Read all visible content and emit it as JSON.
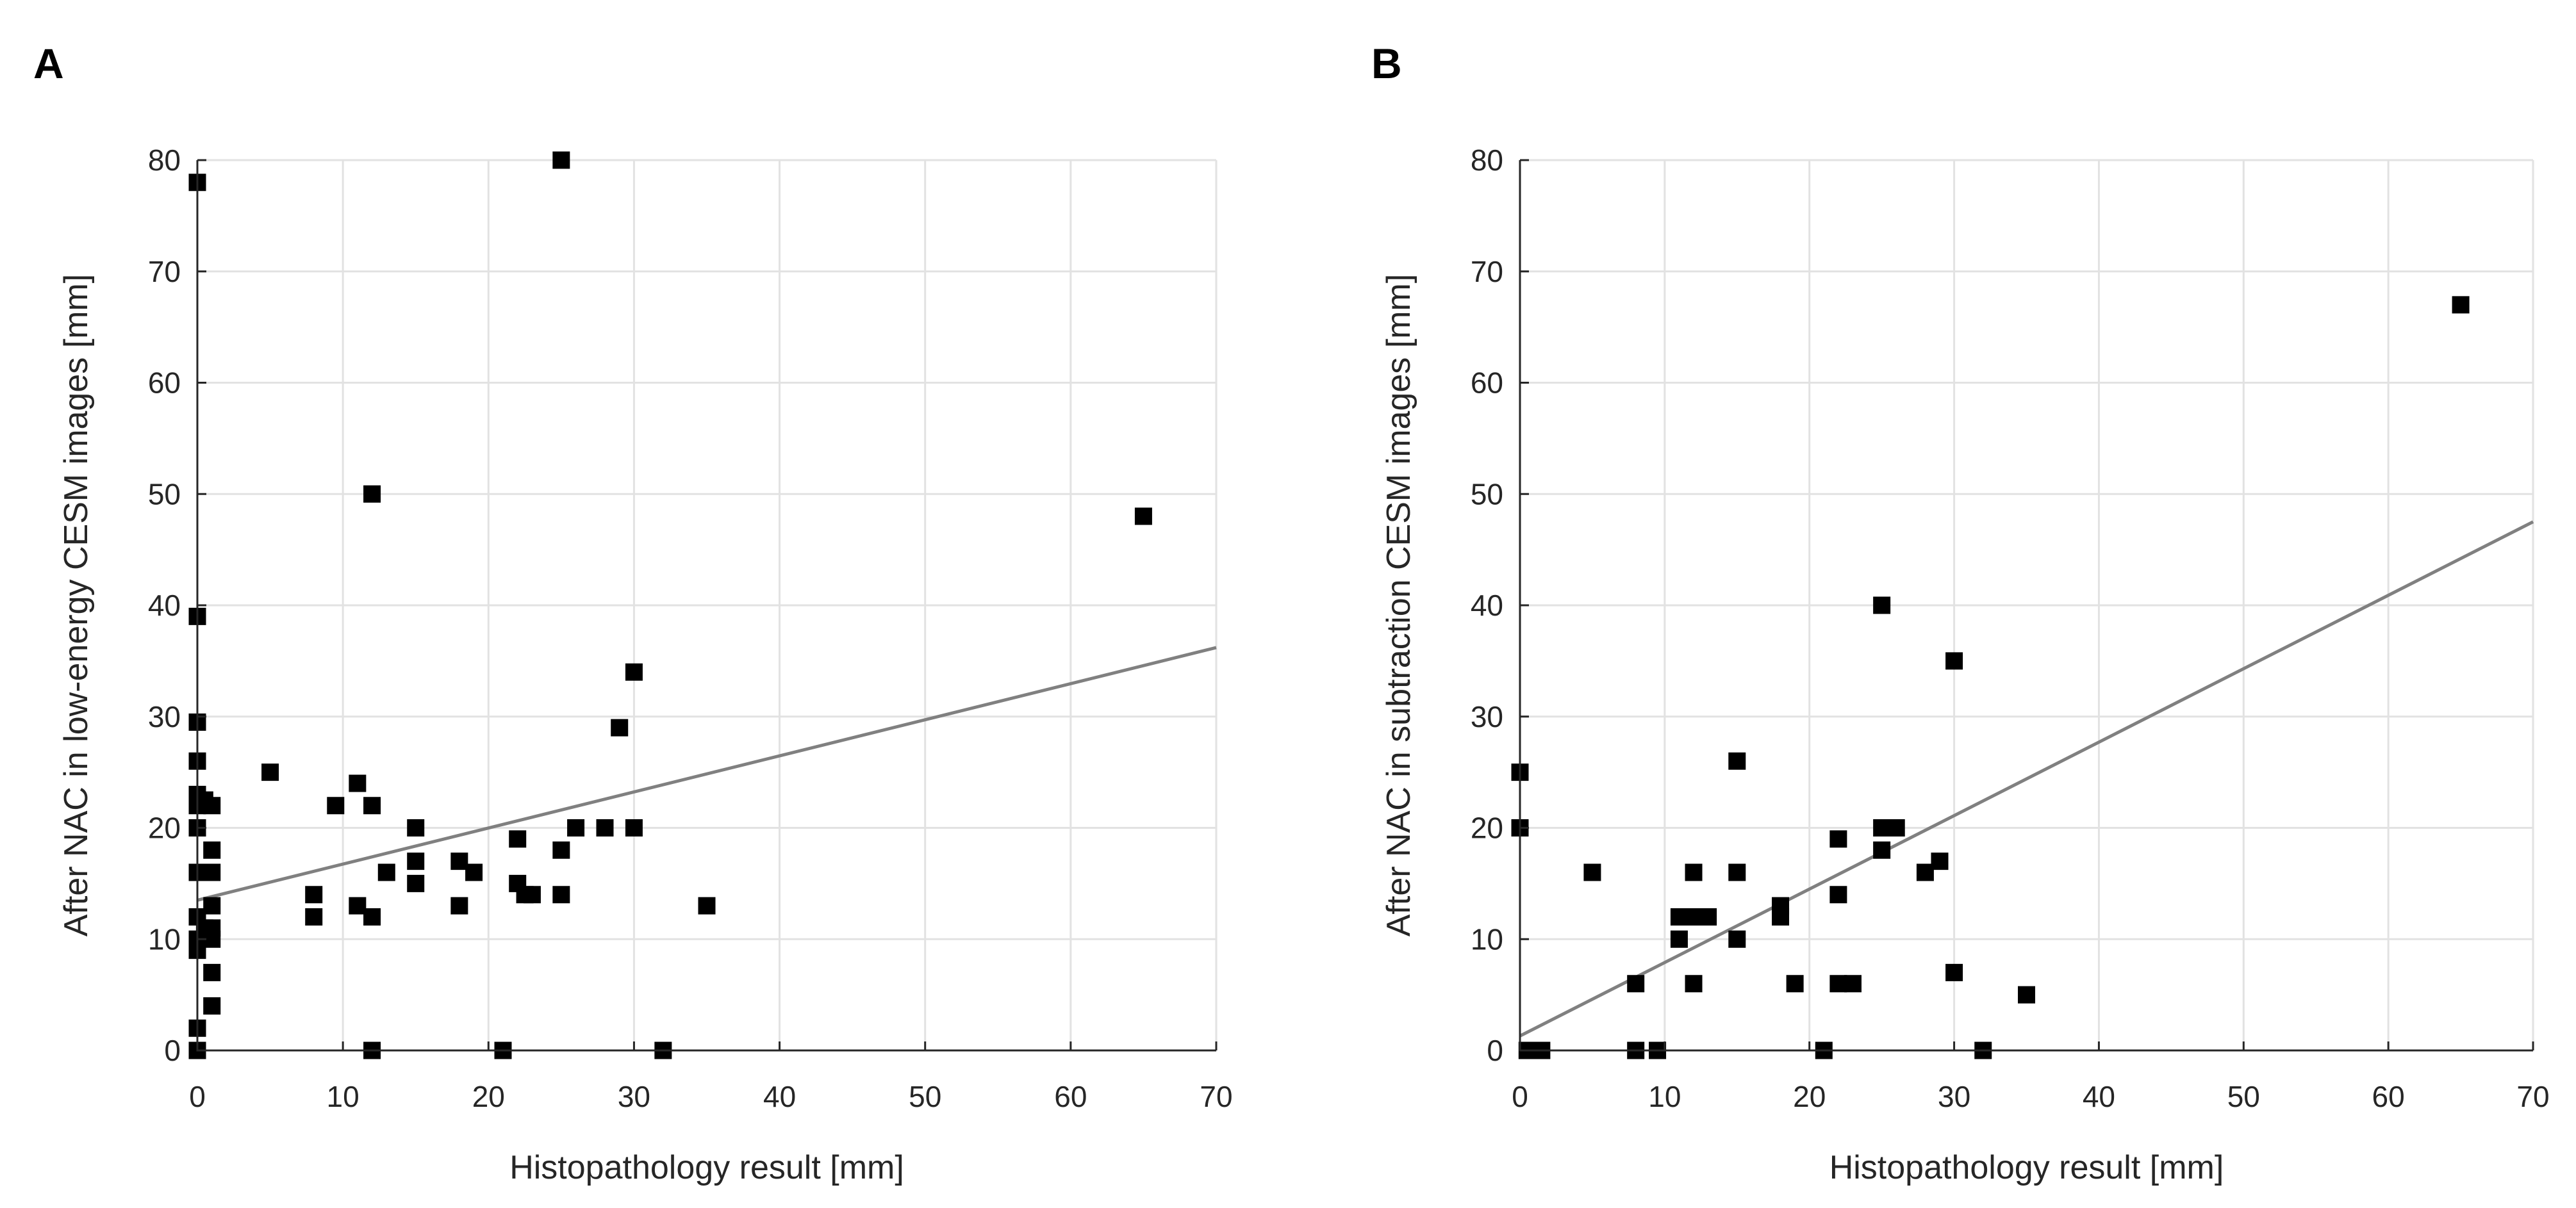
{
  "chart_data": [
    {
      "panel_label": "A",
      "type": "scatter",
      "xlabel": "Histopathology result [mm]",
      "ylabel": "After NAC in low-energy CESM images [mm]",
      "xlim": [
        0,
        70
      ],
      "ylim": [
        0,
        80
      ],
      "xticks": [
        "0",
        "10",
        "20",
        "30",
        "40",
        "50",
        "60",
        "70"
      ],
      "yticks": [
        "0",
        "10",
        "20",
        "30",
        "40",
        "50",
        "60",
        "70",
        "80"
      ],
      "grid": true,
      "series": [
        {
          "name": "measurements",
          "marker": "square",
          "points": [
            [
              0,
              78
            ],
            [
              0,
              39
            ],
            [
              0,
              29.5
            ],
            [
              0,
              26
            ],
            [
              0,
              23
            ],
            [
              0,
              22
            ],
            [
              0,
              20
            ],
            [
              0,
              16
            ],
            [
              0,
              12
            ],
            [
              0,
              10
            ],
            [
              0,
              9
            ],
            [
              0,
              2
            ],
            [
              0,
              0
            ],
            [
              0.5,
              22.5
            ],
            [
              0.5,
              16
            ],
            [
              0.5,
              11
            ],
            [
              1,
              22
            ],
            [
              1,
              18
            ],
            [
              1,
              16
            ],
            [
              1,
              13
            ],
            [
              1,
              11
            ],
            [
              1,
              10
            ],
            [
              1,
              7
            ],
            [
              1,
              4
            ],
            [
              5,
              25
            ],
            [
              8,
              14
            ],
            [
              8,
              12
            ],
            [
              9.5,
              22
            ],
            [
              11,
              24
            ],
            [
              11,
              13
            ],
            [
              12,
              50
            ],
            [
              12,
              22
            ],
            [
              12,
              12
            ],
            [
              12,
              0
            ],
            [
              13,
              16
            ],
            [
              15,
              20
            ],
            [
              15,
              17
            ],
            [
              15,
              15
            ],
            [
              18,
              17
            ],
            [
              18,
              13
            ],
            [
              19,
              16
            ],
            [
              21,
              0
            ],
            [
              22,
              19
            ],
            [
              22,
              15
            ],
            [
              22.5,
              14
            ],
            [
              23,
              14
            ],
            [
              25,
              80
            ],
            [
              25,
              18
            ],
            [
              25,
              14
            ],
            [
              26,
              20
            ],
            [
              28,
              20
            ],
            [
              29,
              29
            ],
            [
              30,
              34
            ],
            [
              30,
              20
            ],
            [
              32,
              0
            ],
            [
              35,
              13
            ],
            [
              65,
              48
            ]
          ]
        }
      ],
      "fit_line": {
        "x": [
          0,
          70
        ],
        "y": [
          13.5,
          36.2
        ]
      }
    },
    {
      "panel_label": "B",
      "type": "scatter",
      "xlabel": "Histopathology result [mm]",
      "ylabel": "After NAC in subtraction CESM images [mm]",
      "xlim": [
        0,
        70
      ],
      "ylim": [
        0,
        80
      ],
      "xticks": [
        "0",
        "10",
        "20",
        "30",
        "40",
        "50",
        "60",
        "70"
      ],
      "yticks": [
        "0",
        "10",
        "20",
        "30",
        "40",
        "50",
        "60",
        "70",
        "80"
      ],
      "grid": true,
      "series": [
        {
          "name": "measurements",
          "marker": "square",
          "points": [
            [
              0,
              25
            ],
            [
              0,
              20
            ],
            [
              0.5,
              0
            ],
            [
              1,
              0
            ],
            [
              1.5,
              0
            ],
            [
              5,
              16
            ],
            [
              8,
              6
            ],
            [
              8,
              0
            ],
            [
              9.5,
              0
            ],
            [
              11,
              12
            ],
            [
              11,
              10
            ],
            [
              12,
              16
            ],
            [
              12,
              12
            ],
            [
              12,
              6
            ],
            [
              13,
              12
            ],
            [
              15,
              26
            ],
            [
              15,
              16
            ],
            [
              15,
              10
            ],
            [
              18,
              13
            ],
            [
              18,
              12
            ],
            [
              19,
              6
            ],
            [
              21,
              0
            ],
            [
              22,
              19
            ],
            [
              22,
              14
            ],
            [
              22,
              6
            ],
            [
              23,
              6
            ],
            [
              25,
              40
            ],
            [
              25,
              20
            ],
            [
              25,
              18
            ],
            [
              26,
              20
            ],
            [
              28,
              16
            ],
            [
              29,
              17
            ],
            [
              30,
              35
            ],
            [
              30,
              7
            ],
            [
              32,
              0
            ],
            [
              35,
              5
            ],
            [
              65,
              67
            ]
          ]
        }
      ],
      "fit_line": {
        "x": [
          0,
          70
        ],
        "y": [
          1.3,
          47.5
        ]
      }
    }
  ]
}
